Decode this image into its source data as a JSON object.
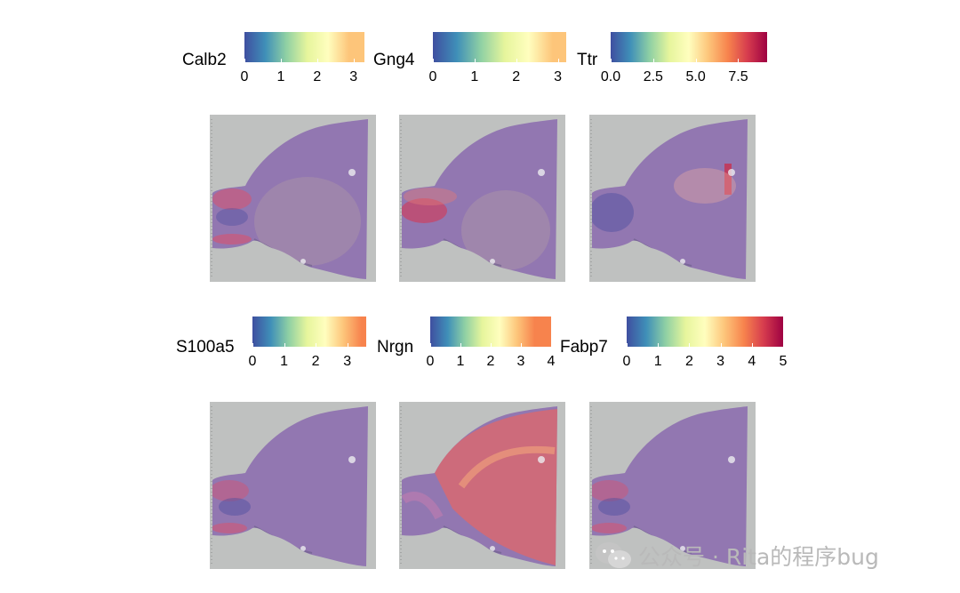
{
  "chart_data": {
    "type": "heatmap",
    "colorscale": [
      "#3f4fa0",
      "#3f8fb8",
      "#8fd0a4",
      "#e6f59c",
      "#fffebe",
      "#fdc57a",
      "#f7834d",
      "#d63c4e",
      "#9e0142"
    ],
    "panels": [
      {
        "gene": "Calb2",
        "ticks": [
          "0",
          "1",
          "2",
          "3"
        ],
        "tick_values": [
          0,
          1,
          2,
          3
        ],
        "range": [
          0,
          3.3
        ],
        "hotspot": "low-left-bands",
        "intensity": 0.35
      },
      {
        "gene": "Gng4",
        "ticks": [
          "0",
          "1",
          "2",
          "3"
        ],
        "tick_values": [
          0,
          1,
          2,
          3
        ],
        "range": [
          0,
          3.2
        ],
        "hotspot": "olfactory-core",
        "intensity": 0.4
      },
      {
        "gene": "Ttr",
        "ticks": [
          "0.0",
          "2.5",
          "5.0",
          "7.5"
        ],
        "tick_values": [
          0,
          2.5,
          5,
          7.5
        ],
        "range": [
          0,
          9.2
        ],
        "hotspot": "ventricle-stripe",
        "intensity": 0.15
      },
      {
        "gene": "S100a5",
        "ticks": [
          "0",
          "1",
          "2",
          "3"
        ],
        "tick_values": [
          0,
          1,
          2,
          3
        ],
        "range": [
          0,
          3.6
        ],
        "hotspot": "olfactory-bulb-edge",
        "intensity": 0.2
      },
      {
        "gene": "Nrgn",
        "ticks": [
          "0",
          "1",
          "2",
          "3",
          "4"
        ],
        "tick_values": [
          0,
          1,
          2,
          3,
          4
        ],
        "range": [
          0,
          4.0
        ],
        "hotspot": "cortex-wide",
        "intensity": 0.75
      },
      {
        "gene": "Fabp7",
        "ticks": [
          "0",
          "1",
          "2",
          "3",
          "4",
          "5"
        ],
        "tick_values": [
          0,
          1,
          2,
          3,
          4,
          5
        ],
        "range": [
          0,
          5.0
        ],
        "hotspot": "olfactory-bulb-edge",
        "intensity": 0.2
      }
    ]
  },
  "watermark": {
    "text": "公众号 · Rita的程序bug",
    "icon": "wechat-icon"
  }
}
